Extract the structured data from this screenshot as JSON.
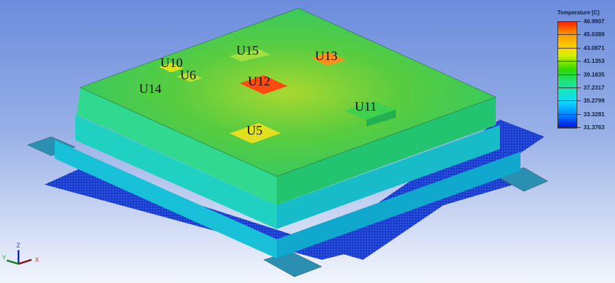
{
  "legend": {
    "title": "Temperature [C]",
    "values": [
      "46.9907",
      "45.0389",
      "43.0871",
      "41.1353",
      "39.1835",
      "37.2317",
      "35.2799",
      "33.3281",
      "31.3763"
    ]
  },
  "components": [
    "U10",
    "U6",
    "U15",
    "U13",
    "U12",
    "U14",
    "U11",
    "U5"
  ],
  "axes": {
    "x": "X",
    "y": "Y",
    "z": "Z"
  },
  "colors": {
    "hot": "#ff2000",
    "cool": "#0010e0",
    "board": "#2fd060"
  }
}
